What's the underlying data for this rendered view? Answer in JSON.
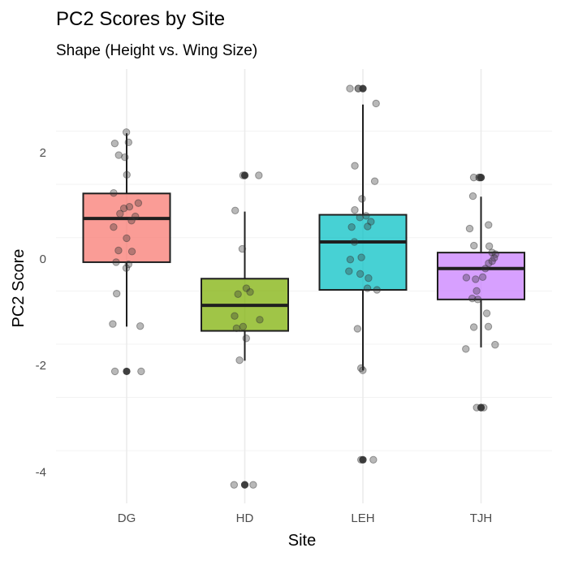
{
  "chart_data": {
    "type": "boxplot",
    "title": "PC2 Scores by Site",
    "subtitle": "Shape (Height vs. Wing Size)",
    "xlabel": "Site",
    "ylabel": "PC2 Score",
    "ylim": [
      -4.6,
      3.4
    ],
    "yticks": [
      -4,
      -2,
      0,
      2
    ],
    "ytick_labels": [
      "-4",
      "-2",
      "0",
      "2"
    ],
    "grid": true,
    "legend": "none",
    "categories": [
      "DG",
      "HD",
      "LEH",
      "TJH"
    ],
    "colors": [
      "#F8766D",
      "#7CAE00",
      "#00BFC4",
      "#C77CFF"
    ],
    "boxes": [
      {
        "category": "DG",
        "whisker_low": -1.27,
        "q1": -0.06,
        "median": 0.76,
        "q3": 1.23,
        "whisker_high": 2.36,
        "outliers": [
          -2.11
        ]
      },
      {
        "category": "HD",
        "whisker_low": -1.91,
        "q1": -1.35,
        "median": -0.87,
        "q3": -0.37,
        "whisker_high": 0.89,
        "outliers": [
          1.57,
          -4.24
        ]
      },
      {
        "category": "LEH",
        "whisker_low": -2.09,
        "q1": -0.58,
        "median": 0.32,
        "q3": 0.83,
        "whisker_high": 2.9,
        "outliers": [
          3.2,
          -3.77
        ]
      },
      {
        "category": "TJH",
        "whisker_low": -1.66,
        "q1": -0.76,
        "median": -0.18,
        "q3": 0.12,
        "whisker_high": 1.17,
        "outliers": [
          1.53,
          -2.79
        ]
      }
    ],
    "points": [
      {
        "category": "DG",
        "values": [
          2.38,
          2.19,
          2.17,
          1.95,
          1.91,
          1.58,
          1.24,
          1.05,
          0.98,
          0.95,
          0.85,
          0.8,
          0.72,
          0.6,
          0.39,
          0.16,
          0.14,
          -0.06,
          -0.1,
          -0.17,
          -0.65,
          -1.22,
          -1.26,
          -2.11,
          -2.11
        ]
      },
      {
        "category": "HD",
        "values": [
          1.57,
          1.57,
          0.91,
          0.19,
          -0.55,
          -0.62,
          -0.66,
          -1.07,
          -1.14,
          -1.27,
          -1.3,
          -1.49,
          -1.9,
          -4.24,
          -4.24
        ]
      },
      {
        "category": "LEH",
        "values": [
          3.2,
          3.2,
          3.2,
          2.92,
          1.75,
          1.46,
          1.13,
          0.92,
          0.81,
          0.78,
          0.7,
          0.61,
          0.6,
          0.32,
          0.03,
          -0.01,
          -0.23,
          -0.28,
          -0.36,
          -0.55,
          -0.58,
          -1.31,
          -2.05,
          -2.09,
          -3.77,
          -3.77
        ]
      },
      {
        "category": "TJH",
        "values": [
          1.53,
          1.53,
          1.53,
          1.18,
          0.64,
          0.57,
          0.25,
          0.24,
          0.12,
          0.09,
          0.02,
          -0.04,
          -0.08,
          -0.18,
          -0.34,
          -0.35,
          -0.38,
          -0.6,
          -0.74,
          -0.76,
          -1.02,
          -1.27,
          -1.28,
          -1.61,
          -1.69,
          -2.79,
          -2.79
        ]
      }
    ]
  }
}
